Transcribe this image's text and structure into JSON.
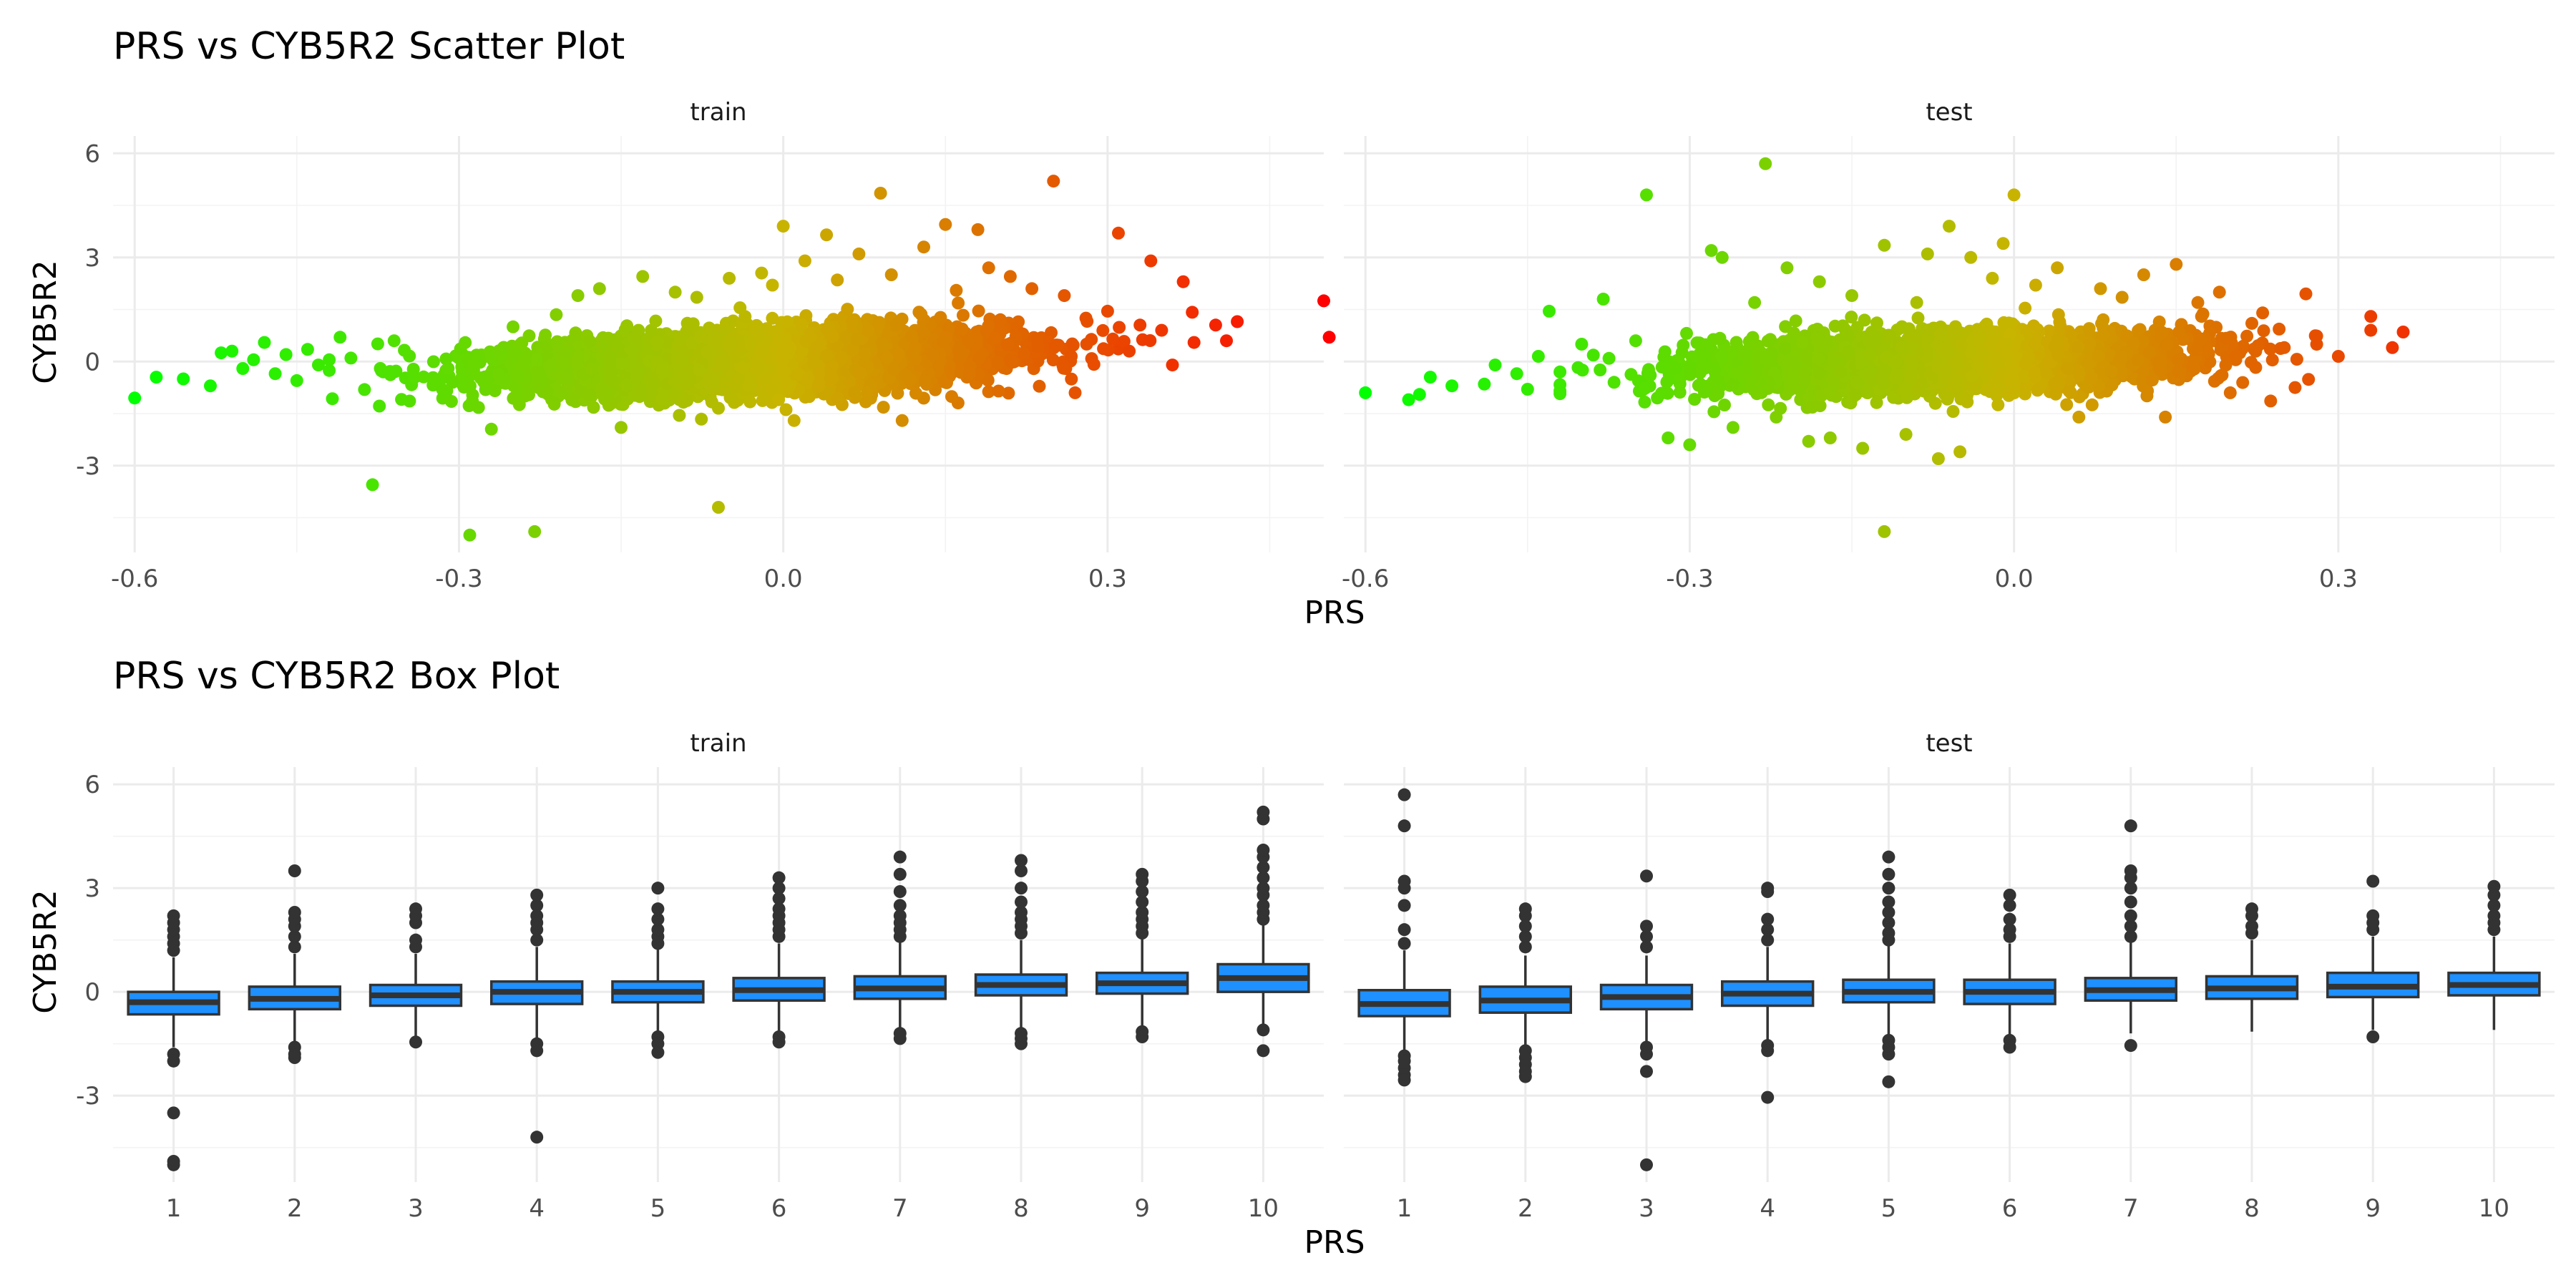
{
  "chart_data": [
    {
      "type": "scatter",
      "title": "PRS vs CYB5R2 Scatter Plot",
      "xlabel": "PRS",
      "ylabel": "CYB5R2",
      "xlim": [
        -0.62,
        0.5
      ],
      "ylim": [
        -5.5,
        6.5
      ],
      "x_ticks": [
        "-0.6",
        "-0.3",
        "0.0",
        "0.3"
      ],
      "y_ticks": [
        "-3",
        "0",
        "3",
        "6"
      ],
      "grid": true,
      "color_scale": {
        "low": "#00ff00",
        "mid": "#c8b400",
        "high": "#ff0000",
        "encodes": "x"
      },
      "panels": [
        {
          "name": "train",
          "points": [
            [
              -0.6,
              -1.05
            ],
            [
              -0.58,
              -0.45
            ],
            [
              -0.555,
              -0.5
            ],
            [
              -0.53,
              -0.7
            ],
            [
              -0.52,
              0.25
            ],
            [
              -0.51,
              0.3
            ],
            [
              -0.5,
              -0.2
            ],
            [
              -0.49,
              0.05
            ],
            [
              -0.48,
              0.55
            ],
            [
              -0.47,
              -0.35
            ],
            [
              -0.46,
              0.2
            ],
            [
              -0.45,
              -0.55
            ],
            [
              -0.44,
              0.35
            ],
            [
              -0.43,
              -0.1
            ],
            [
              -0.42,
              0.05
            ],
            [
              -0.41,
              0.7
            ],
            [
              -0.4,
              0.1
            ],
            [
              -0.38,
              -3.55
            ],
            [
              -0.37,
              -0.3
            ],
            [
              -0.36,
              0.6
            ],
            [
              -0.29,
              -5.0
            ],
            [
              -0.27,
              -1.95
            ],
            [
              -0.25,
              1.0
            ],
            [
              -0.23,
              -4.9
            ],
            [
              -0.21,
              1.35
            ],
            [
              -0.19,
              1.9
            ],
            [
              -0.17,
              2.1
            ],
            [
              -0.15,
              -1.9
            ],
            [
              -0.13,
              2.45
            ],
            [
              -0.1,
              2.0
            ],
            [
              -0.08,
              1.85
            ],
            [
              -0.06,
              -4.2
            ],
            [
              -0.05,
              2.4
            ],
            [
              -0.04,
              1.55
            ],
            [
              -0.02,
              2.55
            ],
            [
              -0.01,
              2.2
            ],
            [
              0.0,
              3.9
            ],
            [
              0.01,
              -1.7
            ],
            [
              0.02,
              2.9
            ],
            [
              0.04,
              3.65
            ],
            [
              0.05,
              2.35
            ],
            [
              0.07,
              3.1
            ],
            [
              0.09,
              4.85
            ],
            [
              0.1,
              2.5
            ],
            [
              0.11,
              -1.7
            ],
            [
              0.13,
              3.3
            ],
            [
              0.15,
              3.95
            ],
            [
              0.16,
              2.05
            ],
            [
              0.18,
              3.8
            ],
            [
              0.19,
              2.7
            ],
            [
              0.21,
              2.45
            ],
            [
              0.23,
              2.1
            ],
            [
              0.25,
              5.2
            ],
            [
              0.26,
              1.9
            ],
            [
              0.27,
              -0.9
            ],
            [
              0.28,
              1.25
            ],
            [
              0.3,
              1.45
            ],
            [
              0.31,
              3.7
            ],
            [
              0.32,
              0.3
            ],
            [
              0.33,
              1.05
            ],
            [
              0.34,
              2.9
            ],
            [
              0.35,
              0.9
            ],
            [
              0.36,
              -0.1
            ],
            [
              0.37,
              2.3
            ],
            [
              0.38,
              0.55
            ],
            [
              0.4,
              1.05
            ],
            [
              0.41,
              0.6
            ],
            [
              0.42,
              1.15
            ],
            [
              0.5,
              1.75
            ],
            [
              0.505,
              0.7
            ]
          ]
        },
        {
          "name": "test",
          "points": [
            [
              -0.6,
              -0.9
            ],
            [
              -0.56,
              -1.1
            ],
            [
              -0.55,
              -0.95
            ],
            [
              -0.54,
              -0.45
            ],
            [
              -0.52,
              -0.7
            ],
            [
              -0.49,
              -0.65
            ],
            [
              -0.48,
              -0.1
            ],
            [
              -0.46,
              -0.35
            ],
            [
              -0.45,
              -0.8
            ],
            [
              -0.44,
              0.15
            ],
            [
              -0.43,
              1.45
            ],
            [
              -0.42,
              -0.3
            ],
            [
              -0.4,
              0.5
            ],
            [
              -0.38,
              1.8
            ],
            [
              -0.37,
              -0.6
            ],
            [
              -0.35,
              0.6
            ],
            [
              -0.34,
              4.8
            ],
            [
              -0.33,
              -1.05
            ],
            [
              -0.32,
              -2.2
            ],
            [
              -0.3,
              -2.4
            ],
            [
              -0.28,
              3.2
            ],
            [
              -0.27,
              3.0
            ],
            [
              -0.26,
              -1.9
            ],
            [
              -0.24,
              1.7
            ],
            [
              -0.23,
              5.7
            ],
            [
              -0.22,
              -1.6
            ],
            [
              -0.21,
              2.7
            ],
            [
              -0.19,
              -2.3
            ],
            [
              -0.18,
              2.3
            ],
            [
              -0.17,
              -2.2
            ],
            [
              -0.15,
              1.9
            ],
            [
              -0.14,
              -2.5
            ],
            [
              -0.12,
              3.35
            ],
            [
              -0.12,
              -4.9
            ],
            [
              -0.1,
              -2.1
            ],
            [
              -0.09,
              1.7
            ],
            [
              -0.08,
              3.1
            ],
            [
              -0.07,
              -2.8
            ],
            [
              -0.06,
              3.9
            ],
            [
              -0.05,
              -2.6
            ],
            [
              -0.04,
              3.0
            ],
            [
              -0.02,
              2.4
            ],
            [
              -0.01,
              3.4
            ],
            [
              0.0,
              4.8
            ],
            [
              0.02,
              2.2
            ],
            [
              0.04,
              2.7
            ],
            [
              0.06,
              -1.6
            ],
            [
              0.08,
              2.1
            ],
            [
              0.1,
              1.85
            ],
            [
              0.12,
              2.5
            ],
            [
              0.14,
              -1.6
            ],
            [
              0.15,
              2.8
            ],
            [
              0.17,
              1.7
            ],
            [
              0.19,
              2.0
            ],
            [
              0.2,
              -0.9
            ],
            [
              0.22,
              1.1
            ],
            [
              0.23,
              1.4
            ],
            [
              0.25,
              0.4
            ],
            [
              0.26,
              -0.75
            ],
            [
              0.27,
              1.95
            ],
            [
              0.3,
              0.15
            ],
            [
              0.33,
              1.3
            ],
            [
              0.33,
              0.9
            ],
            [
              0.35,
              0.4
            ],
            [
              0.36,
              0.85
            ]
          ]
        }
      ]
    },
    {
      "type": "box",
      "title": "PRS vs CYB5R2 Box Plot",
      "xlabel": "PRS",
      "ylabel": "CYB5R2",
      "categories": [
        "1",
        "2",
        "3",
        "4",
        "5",
        "6",
        "7",
        "8",
        "9",
        "10"
      ],
      "ylim": [
        -5.5,
        6.5
      ],
      "y_ticks": [
        "-3",
        "0",
        "3",
        "6"
      ],
      "grid": true,
      "box_fill": "#1e90ff",
      "box_outline": "#333333",
      "panels": [
        {
          "name": "train",
          "boxes": [
            {
              "q1": -0.65,
              "median": -0.3,
              "q3": 0.0,
              "lo": -1.6,
              "hi": 1.0,
              "outliers": [
                1.2,
                1.4,
                1.6,
                1.8,
                2.0,
                2.2,
                -1.8,
                -2.0,
                -3.5,
                -4.9,
                -5.0
              ]
            },
            {
              "q1": -0.5,
              "median": -0.2,
              "q3": 0.15,
              "lo": -1.45,
              "hi": 1.1,
              "outliers": [
                1.3,
                1.6,
                1.9,
                2.1,
                2.3,
                3.5,
                -1.6,
                -1.8,
                -1.9
              ]
            },
            {
              "q1": -0.4,
              "median": -0.1,
              "q3": 0.2,
              "lo": -1.35,
              "hi": 1.1,
              "outliers": [
                1.3,
                1.5,
                2.0,
                2.2,
                2.4,
                -1.45
              ]
            },
            {
              "q1": -0.35,
              "median": 0.0,
              "q3": 0.3,
              "lo": -1.35,
              "hi": 1.3,
              "outliers": [
                1.5,
                1.8,
                2.0,
                2.2,
                2.5,
                2.8,
                -1.5,
                -1.7,
                -4.2
              ]
            },
            {
              "q1": -0.3,
              "median": 0.0,
              "q3": 0.3,
              "lo": -1.25,
              "hi": 1.25,
              "outliers": [
                1.4,
                1.6,
                1.8,
                2.1,
                2.4,
                3.0,
                -1.3,
                -1.5,
                -1.75
              ]
            },
            {
              "q1": -0.25,
              "median": 0.05,
              "q3": 0.4,
              "lo": -1.2,
              "hi": 1.4,
              "outliers": [
                1.6,
                1.8,
                2.0,
                2.2,
                2.4,
                2.7,
                3.0,
                3.3,
                -1.3,
                -1.45
              ]
            },
            {
              "q1": -0.2,
              "median": 0.1,
              "q3": 0.45,
              "lo": -1.15,
              "hi": 1.45,
              "outliers": [
                1.6,
                1.8,
                2.0,
                2.2,
                2.5,
                2.9,
                3.4,
                3.9,
                -1.2,
                -1.35
              ]
            },
            {
              "q1": -0.1,
              "median": 0.2,
              "q3": 0.5,
              "lo": -1.05,
              "hi": 1.5,
              "outliers": [
                1.7,
                1.9,
                2.1,
                2.3,
                2.6,
                3.0,
                3.5,
                3.8,
                -1.2,
                -1.35,
                -1.5
              ]
            },
            {
              "q1": -0.05,
              "median": 0.25,
              "q3": 0.55,
              "lo": -1.0,
              "hi": 1.55,
              "outliers": [
                1.7,
                1.9,
                2.1,
                2.3,
                2.6,
                2.9,
                3.2,
                3.4,
                -1.15,
                -1.3
              ]
            },
            {
              "q1": 0.0,
              "median": 0.4,
              "q3": 0.8,
              "lo": -1.0,
              "hi": 1.95,
              "outliers": [
                2.1,
                2.3,
                2.5,
                2.8,
                3.0,
                3.3,
                3.6,
                3.9,
                4.1,
                5.0,
                5.2,
                -1.1,
                -1.7
              ]
            }
          ]
        },
        {
          "name": "test",
          "boxes": [
            {
              "q1": -0.7,
              "median": -0.35,
              "q3": 0.05,
              "lo": -1.7,
              "hi": 1.2,
              "outliers": [
                1.4,
                1.8,
                2.5,
                3.0,
                3.2,
                4.8,
                5.7,
                -1.85,
                -2.0,
                -2.2,
                -2.4,
                -2.55
              ]
            },
            {
              "q1": -0.6,
              "median": -0.25,
              "q3": 0.15,
              "lo": -1.6,
              "hi": 1.05,
              "outliers": [
                1.3,
                1.6,
                1.9,
                2.2,
                2.4,
                -1.7,
                -1.9,
                -2.1,
                -2.3,
                -2.45
              ]
            },
            {
              "q1": -0.5,
              "median": -0.15,
              "q3": 0.2,
              "lo": -1.5,
              "hi": 1.05,
              "outliers": [
                1.3,
                1.6,
                1.9,
                3.35,
                -1.6,
                -1.8,
                -2.3,
                -5.0
              ]
            },
            {
              "q1": -0.4,
              "median": -0.05,
              "q3": 0.3,
              "lo": -1.45,
              "hi": 1.3,
              "outliers": [
                1.5,
                1.8,
                2.1,
                2.9,
                3.0,
                -1.55,
                -1.7,
                -3.05
              ]
            },
            {
              "q1": -0.3,
              "median": 0.0,
              "q3": 0.35,
              "lo": -1.3,
              "hi": 1.35,
              "outliers": [
                1.5,
                1.7,
                2.0,
                2.3,
                2.6,
                3.0,
                3.4,
                3.9,
                -1.4,
                -1.6,
                -1.8,
                -2.6
              ]
            },
            {
              "q1": -0.35,
              "median": 0.0,
              "q3": 0.35,
              "lo": -1.3,
              "hi": 1.4,
              "outliers": [
                1.6,
                1.8,
                2.1,
                2.5,
                2.8,
                -1.4,
                -1.6
              ]
            },
            {
              "q1": -0.25,
              "median": 0.05,
              "q3": 0.4,
              "lo": -1.2,
              "hi": 1.45,
              "outliers": [
                1.6,
                1.9,
                2.2,
                2.6,
                3.0,
                3.3,
                3.5,
                4.8,
                -1.55
              ]
            },
            {
              "q1": -0.2,
              "median": 0.1,
              "q3": 0.45,
              "lo": -1.15,
              "hi": 1.5,
              "outliers": [
                1.7,
                1.9,
                2.2,
                2.4
              ]
            },
            {
              "q1": -0.15,
              "median": 0.15,
              "q3": 0.55,
              "lo": -1.1,
              "hi": 1.6,
              "outliers": [
                1.8,
                2.0,
                2.2,
                3.2,
                -1.3
              ]
            },
            {
              "q1": -0.1,
              "median": 0.2,
              "q3": 0.55,
              "lo": -1.1,
              "hi": 1.6,
              "outliers": [
                1.8,
                2.0,
                2.2,
                2.5,
                2.8,
                3.05
              ]
            }
          ]
        }
      ]
    }
  ]
}
